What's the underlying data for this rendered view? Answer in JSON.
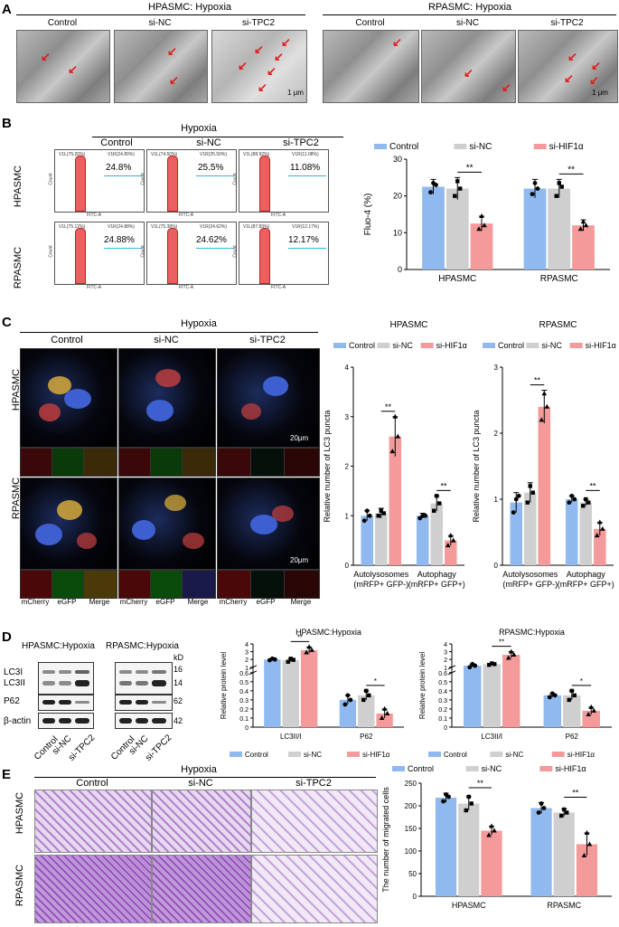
{
  "panels": {
    "A": {
      "label": "A",
      "left_title": "HPASMC:  Hypoxia",
      "right_title": "RPASMC:  Hypoxia",
      "columns": [
        "Control",
        "si-NC",
        "si-TPC2"
      ],
      "scale": "1 μm"
    },
    "B": {
      "label": "B",
      "title": "Hypoxia",
      "columns": [
        "Control",
        "si-NC",
        "si-TPC2"
      ],
      "rows": [
        "HPASMC",
        "RPASMC"
      ],
      "percentages": [
        [
          "24.8%",
          "25.5%",
          "11.08%"
        ],
        [
          "24.88%",
          "24.62%",
          "12.17%"
        ]
      ],
      "gate_left": [
        [
          "V1L(75.20%)",
          "V1L(74.50%)",
          "V1L(88.92%)"
        ],
        [
          "V1L(75.12%)",
          "V1L(75.38%)",
          "V1L(87.83%)"
        ]
      ],
      "gate_right": [
        [
          "V1R(24.80%)",
          "V1R(25.50%)",
          "V1R(11.08%)"
        ],
        [
          "V1R(24.88%)",
          "V1R(24.62%)",
          "V1R(12.17%)"
        ]
      ],
      "axis_x": "FITC-A",
      "axis_y": "Count"
    },
    "C": {
      "label": "C",
      "title": "Hypoxia",
      "columns": [
        "Control",
        "si-NC",
        "si-TPC2"
      ],
      "rows": [
        "HPASMC",
        "RPASMC"
      ],
      "channels": [
        "mCherry",
        "eGFP",
        "Merge"
      ],
      "scale": "20μm"
    },
    "D": {
      "label": "D",
      "left_title": "HPASMC:Hypoxia",
      "right_title": "RPASMC:Hypoxia",
      "kd_label": "kD",
      "proteins": [
        "LC3I",
        "LC3II",
        "P62",
        "β-actin"
      ],
      "kd_values": [
        "16",
        "14",
        "62",
        "42"
      ],
      "lanes": [
        "Control",
        "si-NC",
        "si-TPC2"
      ]
    },
    "E": {
      "label": "E",
      "title": "Hypoxia",
      "columns": [
        "Control",
        "si-NC",
        "si-TPC2"
      ],
      "rows": [
        "HPASMC",
        "RPASMC"
      ]
    }
  },
  "colors": {
    "control": "#8fb9ef",
    "si_nc": "#cfcfcf",
    "si_hif": "#f49a9a",
    "arrow": "#e21b1b"
  },
  "chart_data": [
    {
      "type": "bar",
      "id": "B-fluo4",
      "legend": [
        "Control",
        "si-NC",
        "si-HIF1α"
      ],
      "legend_position": "top",
      "categories": [
        "HPASMC",
        "RPASMC"
      ],
      "series": [
        {
          "name": "Control",
          "values": [
            22.5,
            22.0
          ],
          "err": [
            2.0,
            2.5
          ],
          "points": [
            [
              21,
              23.5,
              23
            ],
            [
              20.5,
              23.5,
              22
            ]
          ]
        },
        {
          "name": "si-NC",
          "values": [
            22.0,
            22.0
          ],
          "err": [
            3.0,
            2.5
          ],
          "points": [
            [
              20,
              24,
              22
            ],
            [
              20,
              23.5,
              22.5
            ]
          ]
        },
        {
          "name": "si-HIF1α",
          "values": [
            12.5,
            12.0
          ],
          "err": [
            2.0,
            1.5
          ],
          "points": [
            [
              11,
              14.5,
              12
            ],
            [
              11,
              13,
              12
            ]
          ]
        }
      ],
      "ylabel": "Fluo-4 (%)",
      "xlabel": "",
      "ylim": [
        0,
        30
      ],
      "yticks": [
        0,
        10,
        20,
        30
      ],
      "significance": [
        {
          "category": 0,
          "label": "**"
        },
        {
          "category": 1,
          "label": "**"
        }
      ]
    },
    {
      "type": "bar",
      "id": "C-hpasmc",
      "title": "HPASMC",
      "legend": [
        "Control",
        "si-NC",
        "si-HIF1α"
      ],
      "legend_position": "top",
      "categories": [
        "Autolysosomes\n(mRFP+ GFP-)",
        "Autophagy\n(mRFP+ GFP+)"
      ],
      "series": [
        {
          "name": "Control",
          "values": [
            1.0,
            1.0
          ],
          "err": [
            0.1,
            0.05
          ],
          "points": [
            [
              0.9,
              1.1,
              1.0
            ],
            [
              0.95,
              1.0,
              1.0
            ]
          ]
        },
        {
          "name": "si-NC",
          "values": [
            1.05,
            1.25
          ],
          "err": [
            0.1,
            0.15
          ],
          "points": [
            [
              1.0,
              1.1,
              1.05
            ],
            [
              1.1,
              1.4,
              1.25
            ]
          ]
        },
        {
          "name": "si-HIF1α",
          "values": [
            2.6,
            0.5
          ],
          "err": [
            0.4,
            0.1
          ],
          "points": [
            [
              2.3,
              3.0,
              2.6
            ],
            [
              0.4,
              0.6,
              0.5
            ]
          ]
        }
      ],
      "ylabel": "Relative number of LC3 puncta",
      "ylim": [
        0,
        4
      ],
      "yticks": [
        0,
        1,
        2,
        3,
        4
      ],
      "significance": [
        {
          "category": 0,
          "label": "**"
        },
        {
          "category": 1,
          "label": "**"
        }
      ]
    },
    {
      "type": "bar",
      "id": "C-rpasmc",
      "title": "RPASMC",
      "legend": [
        "Control",
        "si-NC",
        "si-HIF1α"
      ],
      "legend_position": "top",
      "categories": [
        "Autolysosomes\n(mRFP+ GFP-)",
        "Autophagy\n(mRFP+ GFP+)"
      ],
      "series": [
        {
          "name": "Control",
          "values": [
            0.95,
            1.0
          ],
          "err": [
            0.15,
            0.05
          ],
          "points": [
            [
              0.8,
              1.0,
              1.05
            ],
            [
              0.95,
              1.05,
              1.0
            ]
          ]
        },
        {
          "name": "si-NC",
          "values": [
            1.1,
            0.95
          ],
          "err": [
            0.15,
            0.05
          ],
          "points": [
            [
              0.95,
              1.2,
              1.1
            ],
            [
              0.9,
              1.0,
              0.95
            ]
          ]
        },
        {
          "name": "si-HIF1α",
          "values": [
            2.4,
            0.55
          ],
          "err": [
            0.25,
            0.1
          ],
          "points": [
            [
              2.2,
              2.6,
              2.4
            ],
            [
              0.45,
              0.65,
              0.55
            ]
          ]
        }
      ],
      "ylabel": "Relative number of LC3 puncta",
      "ylim": [
        0,
        3
      ],
      "yticks": [
        0,
        1,
        2,
        3
      ],
      "significance": [
        {
          "category": 0,
          "label": "**"
        },
        {
          "category": 1,
          "label": "**"
        }
      ]
    },
    {
      "type": "bar",
      "id": "D-hpasmc",
      "title": "HPASMC:Hypoxia",
      "legend": [
        "Control",
        "si-NC",
        "si-HIF1α"
      ],
      "legend_position": "bottom",
      "categories": [
        "LC3II/I",
        "P62"
      ],
      "series": [
        {
          "name": "Control",
          "values": [
            2.0,
            0.3
          ],
          "err": [
            0.1,
            0.05
          ],
          "points": [
            [
              1.9,
              2.1,
              2.0
            ],
            [
              0.25,
              0.35,
              0.3
            ]
          ]
        },
        {
          "name": "si-NC",
          "values": [
            1.9,
            0.35
          ],
          "err": [
            0.2,
            0.05
          ],
          "points": [
            [
              1.7,
              2.1,
              1.95
            ],
            [
              0.3,
              0.4,
              0.35
            ]
          ]
        },
        {
          "name": "si-HIF1α",
          "values": [
            3.2,
            0.15
          ],
          "err": [
            0.4,
            0.05
          ],
          "points": [
            [
              2.9,
              3.6,
              3.2
            ],
            [
              0.1,
              0.2,
              0.15
            ]
          ]
        }
      ],
      "ylabel": "Relative protein level",
      "axis_break": true,
      "lower_ylim": [
        0,
        0.6
      ],
      "upper_ylim": [
        1,
        4
      ],
      "yticks_lower": [
        0.0,
        0.1,
        0.2,
        0.3,
        0.4,
        0.5,
        0.6
      ],
      "yticks_upper": [
        1,
        2,
        3,
        4
      ],
      "significance": [
        {
          "category": 0,
          "label": "**"
        },
        {
          "category": 1,
          "label": "*"
        }
      ]
    },
    {
      "type": "bar",
      "id": "D-rpasmc",
      "title": "RPASMC:Hypoxia",
      "legend": [
        "Control",
        "si-NC",
        "si-HIF1α"
      ],
      "legend_position": "bottom",
      "categories": [
        "LC3II/I",
        "P62"
      ],
      "series": [
        {
          "name": "Control",
          "values": [
            1.2,
            0.35
          ],
          "err": [
            0.2,
            0.02
          ],
          "points": [
            [
              1.0,
              1.4,
              1.2
            ],
            [
              0.33,
              0.37,
              0.35
            ]
          ]
        },
        {
          "name": "si-NC",
          "values": [
            1.4,
            0.35
          ],
          "err": [
            0.1,
            0.05
          ],
          "points": [
            [
              1.3,
              1.5,
              1.4
            ],
            [
              0.3,
              0.4,
              0.35
            ]
          ]
        },
        {
          "name": "si-HIF1α",
          "values": [
            2.6,
            0.18
          ],
          "err": [
            0.4,
            0.04
          ],
          "points": [
            [
              2.2,
              3.0,
              2.6
            ],
            [
              0.14,
              0.22,
              0.18
            ]
          ]
        }
      ],
      "ylabel": "Relative protein level",
      "axis_break": true,
      "lower_ylim": [
        0,
        0.6
      ],
      "upper_ylim": [
        1,
        4
      ],
      "yticks_lower": [
        0.0,
        0.1,
        0.2,
        0.3,
        0.4,
        0.5,
        0.6
      ],
      "yticks_upper": [
        1,
        2,
        3,
        4
      ],
      "significance": [
        {
          "category": 0,
          "label": "**"
        },
        {
          "category": 1,
          "label": "*"
        }
      ]
    },
    {
      "type": "bar",
      "id": "E-migration",
      "legend": [
        "Control",
        "si-NC",
        "si-HIF1α"
      ],
      "legend_position": "top",
      "categories": [
        "HPASMC",
        "RPASMC"
      ],
      "series": [
        {
          "name": "Control",
          "values": [
            218,
            195
          ],
          "err": [
            10,
            12
          ],
          "points": [
            [
              210,
              225,
              220
            ],
            [
              185,
              205,
              195
            ]
          ]
        },
        {
          "name": "si-NC",
          "values": [
            205,
            185
          ],
          "err": [
            15,
            8
          ],
          "points": [
            [
              190,
              220,
              205
            ],
            [
              178,
              192,
              185
            ]
          ]
        },
        {
          "name": "si-HIF1α",
          "values": [
            145,
            115
          ],
          "err": [
            10,
            25
          ],
          "points": [
            [
              135,
              155,
              145
            ],
            [
              90,
              140,
              115
            ]
          ]
        }
      ],
      "ylabel": "The number of migrated cells",
      "ylim": [
        0,
        250
      ],
      "yticks": [
        0,
        50,
        100,
        150,
        200,
        250
      ],
      "significance": [
        {
          "category": 0,
          "label": "**"
        },
        {
          "category": 1,
          "label": "**"
        }
      ]
    }
  ]
}
